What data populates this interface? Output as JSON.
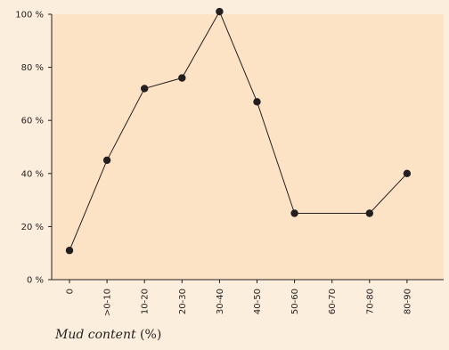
{
  "chart_data": {
    "type": "line",
    "categories": [
      "0",
      ">0-10",
      "10-20",
      "20-30",
      "30-40",
      "40-50",
      "50-60",
      "60-70",
      "70-80",
      "80-90"
    ],
    "series": [
      {
        "values": [
          11,
          45,
          72,
          76,
          101,
          67,
          25,
          null,
          25,
          40
        ],
        "connected_through": [
          [
            6,
            8
          ]
        ]
      }
    ],
    "y_ticks": [
      0,
      20,
      40,
      60,
      80,
      100
    ],
    "y_tick_labels": [
      "0 %",
      "20 %",
      "40 %",
      "60 %",
      "80 %",
      "100 %"
    ],
    "ylim": [
      0,
      100
    ],
    "xlabel_italic": "Mud content",
    "xlabel_suffix": " (%)",
    "grid": false,
    "colors": {
      "page_background": "#fbeedc",
      "plot_background": "#fde3c6",
      "line": "#231f20",
      "marker": "#231f20"
    }
  }
}
